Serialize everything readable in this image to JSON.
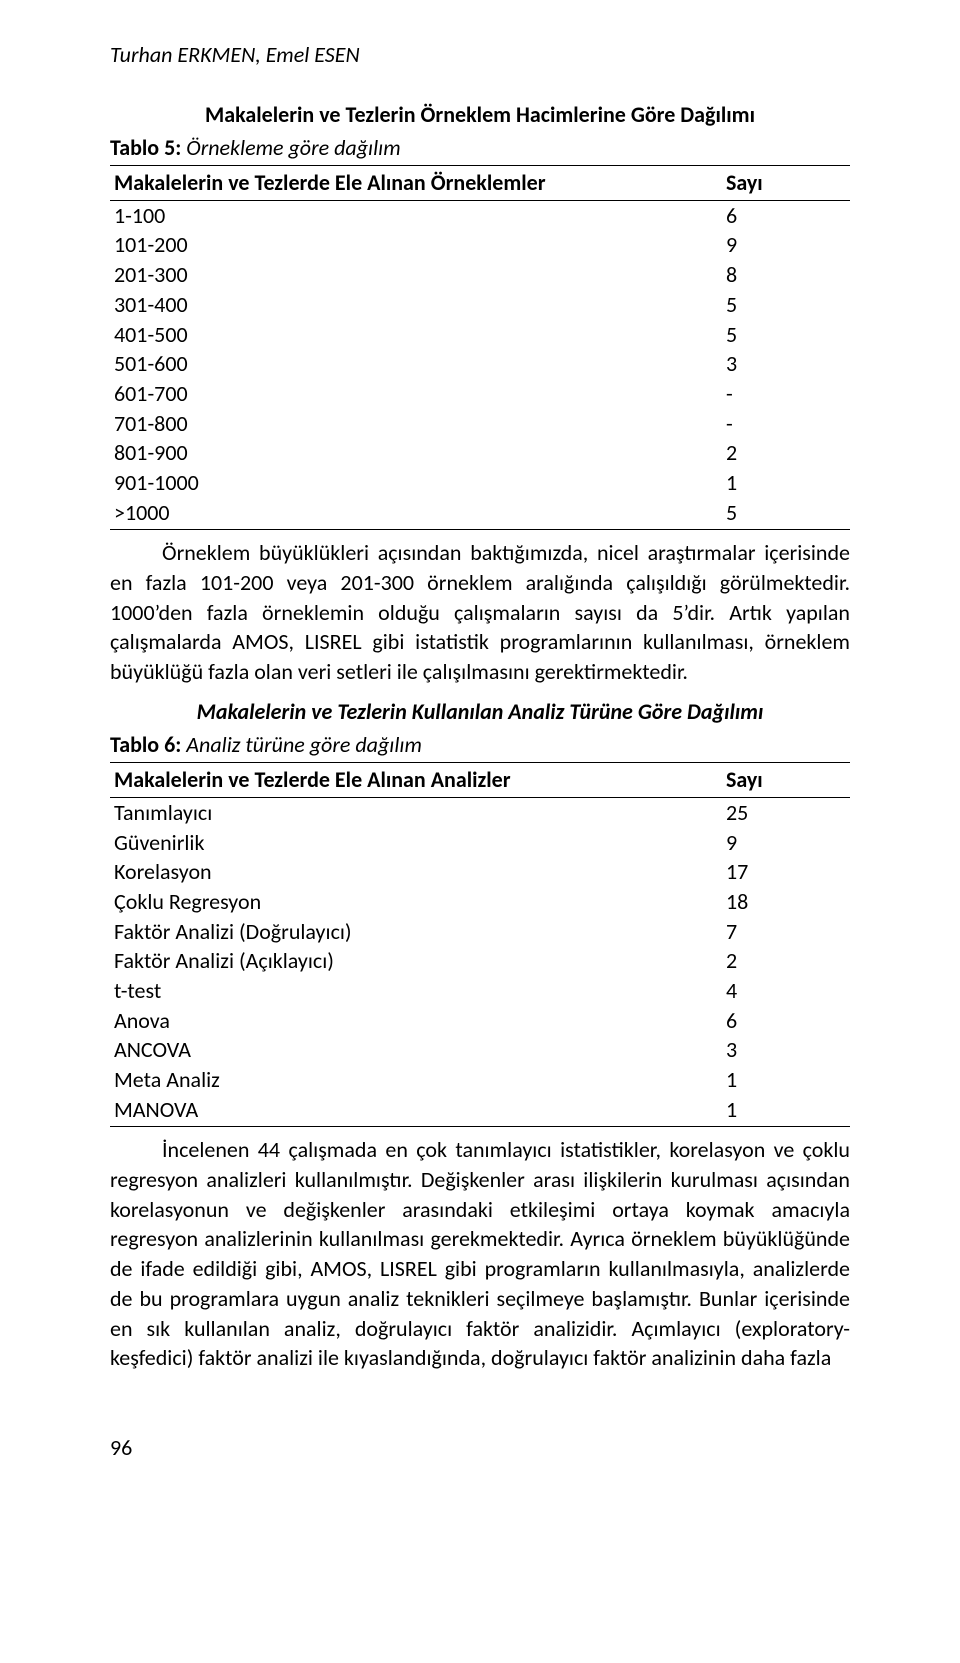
{
  "running_head": "Turhan ERKMEN, Emel ESEN",
  "section1": {
    "title": "Makalelerin ve Tezlerin Örneklem Hacimlerine Göre Dağılımı"
  },
  "table5": {
    "caption_label": "Tablo 5:",
    "caption_desc": " Örnekleme göre dağılım",
    "col1": "Makalelerin ve Tezlerde Ele Alınan Örneklemler",
    "col2": "Sayı",
    "rows": [
      {
        "label": "1-100",
        "count": "6"
      },
      {
        "label": "101-200",
        "count": "9"
      },
      {
        "label": "201-300",
        "count": "8"
      },
      {
        "label": "301-400",
        "count": "5"
      },
      {
        "label": "401-500",
        "count": "5"
      },
      {
        "label": "501-600",
        "count": "3"
      },
      {
        "label": "601-700",
        "count": "-"
      },
      {
        "label": "701-800",
        "count": "-"
      },
      {
        "label": "801-900",
        "count": "2"
      },
      {
        "label": "901-1000",
        "count": "1"
      },
      {
        "label": ">1000",
        "count": "5"
      }
    ]
  },
  "para1": "Örneklem büyüklükleri açısından baktığımızda, nicel araştırmalar içerisinde en fazla 101-200 veya 201-300 örneklem aralığında çalışıldığı görülmektedir. 1000’den fazla örneklemin olduğu çalışmaların sayısı da 5’dir. Artık yapılan çalışmalarda AMOS, LISREL gibi istatistik programlarının kullanılması, örneklem büyüklüğü fazla olan veri setleri ile çalışılmasını gerektirmektedir.",
  "section2": {
    "title": "Makalelerin ve Tezlerin Kullanılan Analiz Türüne Göre Dağılımı"
  },
  "table6": {
    "caption_label": "Tablo 6:",
    "caption_desc": " Analiz türüne göre dağılım",
    "col1": "Makalelerin ve Tezlerde Ele Alınan Analizler",
    "col2": "Sayı",
    "rows": [
      {
        "label": "Tanımlayıcı",
        "count": "25"
      },
      {
        "label": "Güvenirlik",
        "count": "9"
      },
      {
        "label": "Korelasyon",
        "count": "17"
      },
      {
        "label": "Çoklu Regresyon",
        "count": "18"
      },
      {
        "label": "Faktör Analizi (Doğrulayıcı)",
        "count": "7"
      },
      {
        "label": "Faktör Analizi (Açıklayıcı)",
        "count": "2"
      },
      {
        "label": "t-test",
        "count": "4"
      },
      {
        "label": "Anova",
        "count": "6"
      },
      {
        "label": "ANCOVA",
        "count": "3"
      },
      {
        "label": "Meta Analiz",
        "count": "1"
      },
      {
        "label": "MANOVA",
        "count": "1"
      }
    ]
  },
  "para2": "İncelenen 44 çalışmada en çok tanımlayıcı istatistikler, korelasyon ve çoklu regresyon analizleri kullanılmıştır. Değişkenler arası ilişkilerin kurulması açısından korelasyonun ve değişkenler arasındaki etkileşimi ortaya koymak amacıyla regresyon analizlerinin kullanılması gerekmektedir. Ayrıca örneklem büyüklüğünde de ifade edildiği gibi, AMOS, LISREL gibi programların kullanılmasıyla,  analizlerde de bu programlara uygun analiz teknikleri seçilmeye başlamıştır. Bunlar içerisinde en sık kullanılan analiz, doğrulayıcı faktör analizidir. Açımlayıcı (exploratory-keşfedici) faktör analizi ile kıyaslandığında, doğrulayıcı faktör analizinin daha fazla",
  "page_number": "96"
}
